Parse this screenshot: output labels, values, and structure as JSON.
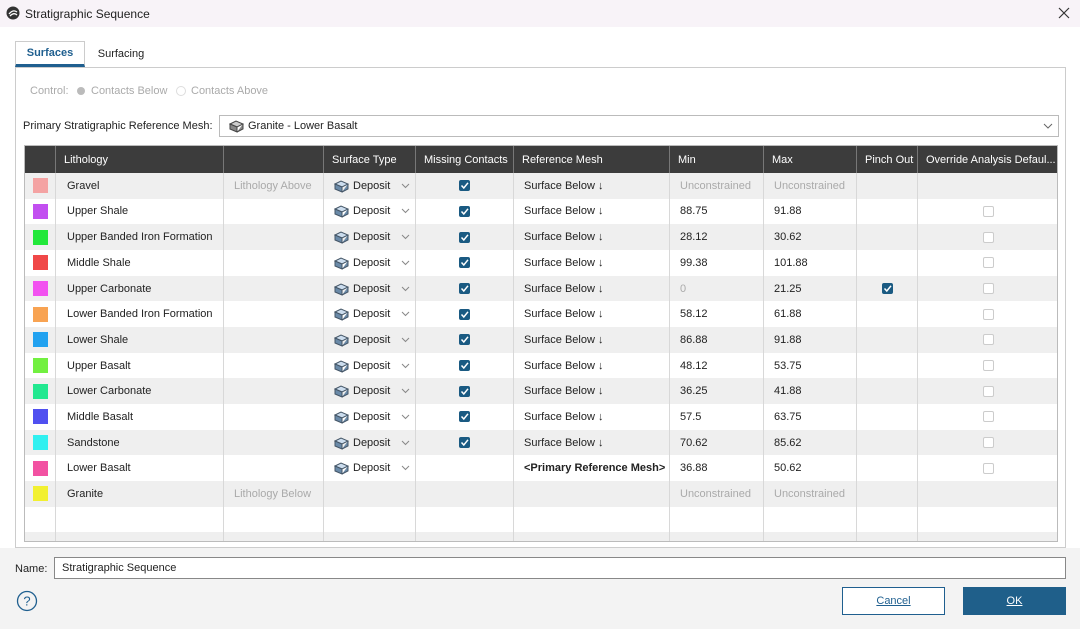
{
  "window": {
    "title": "Stratigraphic Sequence"
  },
  "tabs": [
    "Surfaces",
    "Surfacing"
  ],
  "control": {
    "label": "Control:",
    "options": [
      "Contacts Below",
      "Contacts Above"
    ]
  },
  "primary_mesh": {
    "label": "Primary Stratigraphic Reference Mesh:",
    "value": "Granite - Lower Basalt"
  },
  "table": {
    "columns": [
      "Lithology",
      "Surface Type",
      "Missing Contacts",
      "Reference Mesh",
      "Min",
      "Max",
      "Pinch Out",
      "Override Analysis Defaul..."
    ],
    "rows": [
      {
        "color": "#f4a3a3",
        "lithology": "Gravel",
        "note": "Lithology Above",
        "surface_type": "Deposit",
        "missing_contacts": true,
        "reference_mesh": "Surface Below ↓",
        "min": "Unconstrained",
        "max": "Unconstrained",
        "muted": [
          "min",
          "max"
        ]
      },
      {
        "color": "#c24ff0",
        "lithology": "Upper Shale",
        "surface_type": "Deposit",
        "missing_contacts": true,
        "reference_mesh": "Surface Below ↓",
        "min": "88.75",
        "max": "91.88",
        "override": false
      },
      {
        "color": "#22e83a",
        "lithology": "Upper Banded Iron Formation",
        "surface_type": "Deposit",
        "missing_contacts": true,
        "reference_mesh": "Surface Below ↓",
        "min": "28.12",
        "max": "30.62",
        "override": false
      },
      {
        "color": "#f04848",
        "lithology": "Middle Shale",
        "surface_type": "Deposit",
        "missing_contacts": true,
        "reference_mesh": "Surface Below ↓",
        "min": "99.38",
        "max": "101.88",
        "override": false
      },
      {
        "color": "#f252f0",
        "lithology": "Upper Carbonate",
        "surface_type": "Deposit",
        "missing_contacts": true,
        "reference_mesh": "Surface Below ↓",
        "min": "0",
        "max": "21.25",
        "muted": [
          "min"
        ],
        "pinch_out": true,
        "override": false
      },
      {
        "color": "#f8a352",
        "lithology": "Lower Banded Iron Formation",
        "surface_type": "Deposit",
        "missing_contacts": true,
        "reference_mesh": "Surface Below ↓",
        "min": "58.12",
        "max": "61.88",
        "override": false
      },
      {
        "color": "#22a2f0",
        "lithology": "Lower Shale",
        "surface_type": "Deposit",
        "missing_contacts": true,
        "reference_mesh": "Surface Below ↓",
        "min": "86.88",
        "max": "91.88",
        "override": false
      },
      {
        "color": "#72f040",
        "lithology": "Upper Basalt",
        "surface_type": "Deposit",
        "missing_contacts": true,
        "reference_mesh": "Surface Below ↓",
        "min": "48.12",
        "max": "53.75",
        "override": false
      },
      {
        "color": "#22e890",
        "lithology": "Lower Carbonate",
        "surface_type": "Deposit",
        "missing_contacts": true,
        "reference_mesh": "Surface Below ↓",
        "min": "36.25",
        "max": "41.88",
        "override": false
      },
      {
        "color": "#5050f0",
        "lithology": "Middle Basalt",
        "surface_type": "Deposit",
        "missing_contacts": true,
        "reference_mesh": "Surface Below ↓",
        "min": "57.5",
        "max": "63.75",
        "override": false
      },
      {
        "color": "#30f0f0",
        "lithology": "Sandstone",
        "surface_type": "Deposit",
        "missing_contacts": true,
        "reference_mesh": "Surface Below ↓",
        "min": "70.62",
        "max": "85.62",
        "override": false
      },
      {
        "color": "#f252a2",
        "lithology": "Lower Basalt",
        "surface_type": "Deposit",
        "reference_mesh": "<Primary Reference Mesh>",
        "reference_bold": true,
        "min": "36.88",
        "max": "50.62",
        "override": false
      },
      {
        "color": "#f2f030",
        "lithology": "Granite",
        "note": "Lithology Below",
        "min": "Unconstrained",
        "max": "Unconstrained",
        "muted": [
          "min",
          "max"
        ]
      }
    ]
  },
  "name": {
    "label": "Name:",
    "value": "Stratigraphic Sequence"
  },
  "buttons": [
    "Cancel",
    "OK"
  ]
}
